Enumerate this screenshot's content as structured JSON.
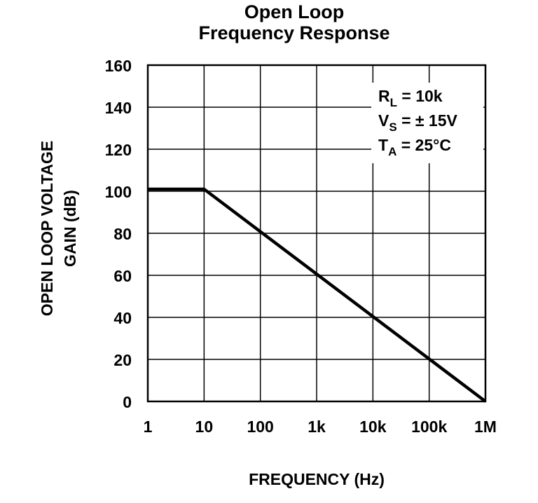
{
  "chart_data": {
    "type": "line",
    "title": [
      "Open Loop",
      "Frequency Response"
    ],
    "ylabel": [
      "OPEN LOOP VOLTAGE",
      "GAIN (dB)"
    ],
    "xlabel": "FREQUENCY (Hz)",
    "x": [
      1,
      10,
      1000000
    ],
    "series": [
      {
        "name": "Gain",
        "color": "#000000",
        "values": [
          101,
          101,
          0
        ]
      }
    ],
    "xscale": "log",
    "xlim": [
      1,
      1000000
    ],
    "xticks": [
      1,
      10,
      100,
      {
        "value": 1000,
        "label": "1k"
      },
      {
        "value": 10000,
        "label": "10k"
      },
      {
        "value": 100000,
        "label": "100k"
      },
      {
        "value": 1000000,
        "label": "1M"
      }
    ],
    "ylim": [
      0,
      160
    ],
    "yticks": [
      0,
      20,
      40,
      60,
      80,
      100,
      120,
      140,
      160
    ],
    "grid": true,
    "annotations": [
      {
        "main": "R",
        "sub": "L",
        "rest": " = 10k"
      },
      {
        "main": "V",
        "sub": "S",
        "rest": " = ± 15V"
      },
      {
        "main": "T",
        "sub": "A",
        "rest": " = 25°C"
      }
    ]
  }
}
